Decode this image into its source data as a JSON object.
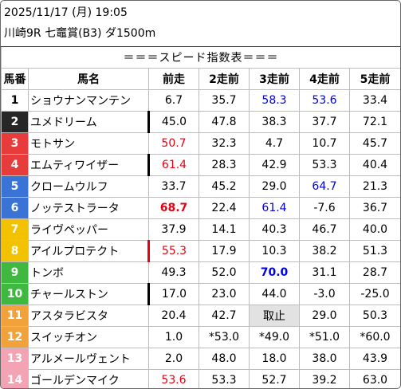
{
  "header": {
    "datetime": "2025/11/17 (月) 19:05",
    "race": "川崎9R 七竈賞(B3) ダ1500m"
  },
  "table": {
    "banner": "＝＝＝スピード指数表＝＝＝",
    "columns": [
      "馬番",
      "馬名",
      "前走",
      "2走前",
      "3走前",
      "4走前",
      "5走前"
    ],
    "rows": [
      {
        "num": "1",
        "name": "ショウナンマンテン",
        "c": [
          "6.7",
          "35.7",
          "58.3",
          "53.6",
          "33.4"
        ]
      },
      {
        "num": "2",
        "name": "ユメドリーム",
        "c": [
          "45.0",
          "47.8",
          "38.3",
          "37.7",
          "72.1"
        ]
      },
      {
        "num": "3",
        "name": "モトサン",
        "c": [
          "50.7",
          "32.3",
          "4.7",
          "10.7",
          "45.7"
        ]
      },
      {
        "num": "4",
        "name": "エムティワイザー",
        "c": [
          "61.4",
          "28.3",
          "42.9",
          "53.3",
          "40.4"
        ]
      },
      {
        "num": "5",
        "name": "クロームウルフ",
        "c": [
          "33.7",
          "45.2",
          "29.0",
          "64.7",
          "21.3"
        ]
      },
      {
        "num": "6",
        "name": "ノッテストラータ",
        "c": [
          "68.7",
          "22.4",
          "61.4",
          "-7.6",
          "36.7"
        ]
      },
      {
        "num": "7",
        "name": "ライヴペッパー",
        "c": [
          "37.9",
          "14.1",
          "40.3",
          "46.7",
          "40.0"
        ]
      },
      {
        "num": "8",
        "name": "アイルプロテクト",
        "c": [
          "55.3",
          "17.9",
          "10.3",
          "38.2",
          "51.3"
        ]
      },
      {
        "num": "9",
        "name": "トンボ",
        "c": [
          "49.3",
          "52.0",
          "70.0",
          "31.1",
          "28.7"
        ]
      },
      {
        "num": "10",
        "name": "チャールストン",
        "c": [
          "17.0",
          "23.0",
          "44.0",
          "-3.0",
          "-25.0"
        ]
      },
      {
        "num": "11",
        "name": "アスタラビスタ",
        "c": [
          "20.4",
          "42.7",
          "取止",
          "29.0",
          "50.3"
        ]
      },
      {
        "num": "12",
        "name": "スイッチオン",
        "c": [
          "1.0",
          "*53.0",
          "*49.0",
          "*51.0",
          "*60.0"
        ]
      },
      {
        "num": "13",
        "name": "アルメールヴェント",
        "c": [
          "2.0",
          "48.0",
          "18.0",
          "38.0",
          "43.9"
        ]
      },
      {
        "num": "14",
        "name": "ゴールデンマイク",
        "c": [
          "53.6",
          "53.3",
          "52.7",
          "39.2",
          "63.0"
        ]
      }
    ]
  },
  "styles": {
    "gate_colors": {
      "1": {
        "bg": "#ffffff",
        "fg": "#000000"
      },
      "2": {
        "bg": "#262626",
        "fg": "#ffffff"
      },
      "3": {
        "bg": "#e83c3c",
        "fg": "#ffffff"
      },
      "4": {
        "bg": "#e83c3c",
        "fg": "#ffffff"
      },
      "5": {
        "bg": "#3a72d6",
        "fg": "#ffffff"
      },
      "6": {
        "bg": "#3a72d6",
        "fg": "#ffffff"
      },
      "7": {
        "bg": "#f2c200",
        "fg": "#ffffff"
      },
      "8": {
        "bg": "#f2c200",
        "fg": "#ffffff"
      },
      "9": {
        "bg": "#3fb83f",
        "fg": "#ffffff"
      },
      "10": {
        "bg": "#3fb83f",
        "fg": "#ffffff"
      },
      "11": {
        "bg": "#f2a23a",
        "fg": "#ffffff"
      },
      "12": {
        "bg": "#f2a23a",
        "fg": "#ffffff"
      },
      "13": {
        "bg": "#f4a3b4",
        "fg": "#ffffff"
      },
      "14": {
        "bg": "#f4a3b4",
        "fg": "#ffffff"
      }
    },
    "red": "#e60012",
    "blue": "#0000e6",
    "highlights": [
      {
        "row": 0,
        "col": 2,
        "color": "blue"
      },
      {
        "row": 0,
        "col": 3,
        "color": "blue"
      },
      {
        "row": 2,
        "col": 0,
        "color": "red"
      },
      {
        "row": 3,
        "col": 0,
        "color": "red"
      },
      {
        "row": 4,
        "col": 3,
        "color": "blue"
      },
      {
        "row": 5,
        "col": 0,
        "color": "red",
        "bold": true
      },
      {
        "row": 5,
        "col": 2,
        "color": "blue"
      },
      {
        "row": 7,
        "col": 0,
        "color": "red"
      },
      {
        "row": 8,
        "col": 2,
        "color": "blue",
        "bold": true
      },
      {
        "row": 13,
        "col": 0,
        "color": "red"
      }
    ],
    "gray_cells": [
      {
        "row": 10,
        "col": 2
      }
    ],
    "bracket_marks": [
      {
        "row": 1,
        "color": "#000000"
      },
      {
        "row": 3,
        "color": "#000000"
      },
      {
        "row": 7,
        "color": "#e60012"
      },
      {
        "row": 9,
        "color": "#000000"
      }
    ]
  }
}
